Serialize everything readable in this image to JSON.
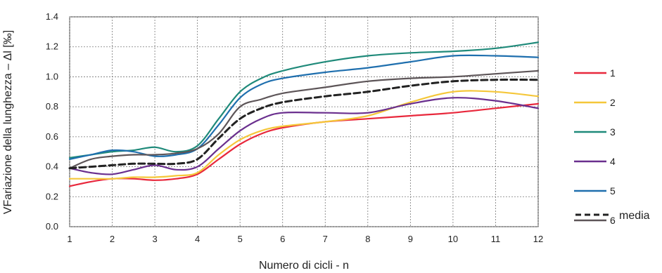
{
  "chart_data": {
    "type": "line",
    "xlabel": "Numero di cicli - n",
    "ylabel": "VFariazione della lunghezza – Δl [‰]",
    "xlim": [
      1,
      12
    ],
    "ylim": [
      0.0,
      1.4
    ],
    "x_ticks": [
      1,
      2,
      3,
      4,
      5,
      6,
      7,
      8,
      9,
      10,
      11,
      12
    ],
    "y_ticks": [
      "0.0",
      "0.2",
      "0.4",
      "0.6",
      "0.8",
      "1.0",
      "1.2",
      "1.4"
    ],
    "grid": true,
    "legend_position": "right",
    "x": [
      1,
      1.5,
      2,
      2.5,
      3,
      3.5,
      4,
      4.5,
      5,
      5.5,
      6,
      7,
      8,
      9,
      10,
      11,
      12
    ],
    "series": [
      {
        "name": "1",
        "color": "#e8283c",
        "dashed": false,
        "values": [
          0.27,
          0.3,
          0.32,
          0.32,
          0.31,
          0.32,
          0.35,
          0.45,
          0.55,
          0.62,
          0.66,
          0.7,
          0.72,
          0.74,
          0.76,
          0.79,
          0.82
        ]
      },
      {
        "name": "2",
        "color": "#f5c73a",
        "dashed": false,
        "values": [
          0.32,
          0.32,
          0.32,
          0.33,
          0.33,
          0.34,
          0.36,
          0.48,
          0.58,
          0.64,
          0.67,
          0.7,
          0.74,
          0.83,
          0.9,
          0.9,
          0.87
        ]
      },
      {
        "name": "3",
        "color": "#1f8a7a",
        "dashed": false,
        "values": [
          0.46,
          0.48,
          0.5,
          0.51,
          0.53,
          0.5,
          0.54,
          0.72,
          0.9,
          0.99,
          1.04,
          1.1,
          1.14,
          1.16,
          1.17,
          1.19,
          1.23
        ]
      },
      {
        "name": "4",
        "color": "#6a2f8e",
        "dashed": false,
        "values": [
          0.39,
          0.36,
          0.35,
          0.38,
          0.41,
          0.38,
          0.4,
          0.52,
          0.64,
          0.72,
          0.76,
          0.76,
          0.76,
          0.82,
          0.86,
          0.84,
          0.79
        ]
      },
      {
        "name": "5",
        "color": "#1f6fae",
        "dashed": false,
        "values": [
          0.45,
          0.48,
          0.51,
          0.5,
          0.47,
          0.48,
          0.52,
          0.68,
          0.86,
          0.95,
          0.99,
          1.03,
          1.06,
          1.1,
          1.14,
          1.14,
          1.13
        ]
      },
      {
        "name": "6",
        "color": "#5d5558",
        "dashed": false,
        "values": [
          0.39,
          0.45,
          0.47,
          0.48,
          0.48,
          0.49,
          0.52,
          0.62,
          0.8,
          0.85,
          0.89,
          0.93,
          0.97,
          0.99,
          1.0,
          1.02,
          1.04
        ]
      },
      {
        "name": "media",
        "color": "#222222",
        "dashed": true,
        "values": [
          0.39,
          0.4,
          0.41,
          0.42,
          0.42,
          0.42,
          0.45,
          0.59,
          0.72,
          0.79,
          0.83,
          0.87,
          0.9,
          0.94,
          0.97,
          0.98,
          0.98
        ]
      }
    ]
  }
}
